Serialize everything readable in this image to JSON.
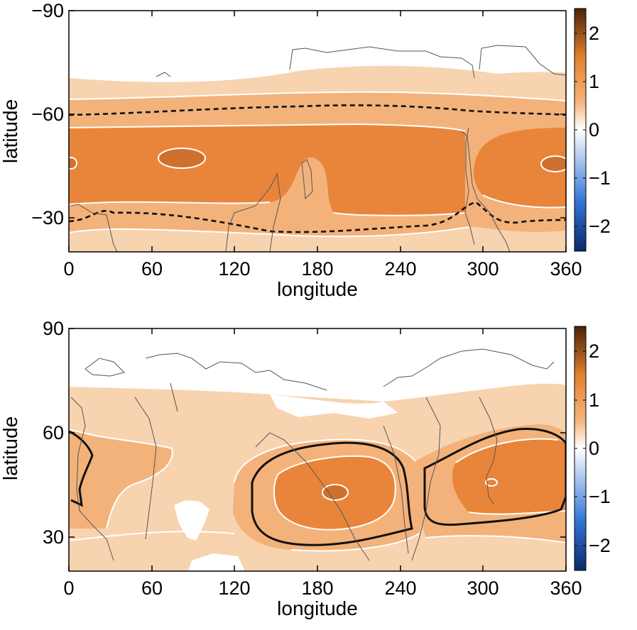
{
  "chart_data": [
    {
      "type": "heatmap",
      "xlabel": "longitude",
      "ylabel": "latitude",
      "xlim": [
        0,
        360
      ],
      "ylim": [
        -90,
        -20
      ],
      "x_ticks": [
        "0",
        "60",
        "120",
        "180",
        "240",
        "300",
        "360"
      ],
      "y_ticks": [
        "-90",
        "-60",
        "-30"
      ],
      "colorbar_ticks": [
        "2",
        "1",
        "0",
        "-1",
        "-2"
      ],
      "colorbar_range": [
        -2.5,
        2.5
      ],
      "colormap": [
        "#0b2a66",
        "#2f73d6",
        "#ffffff",
        "#f4b27a",
        "#e0822f",
        "#4a2208"
      ],
      "contour_levels": [
        0.5,
        1.0,
        1.5,
        2.0
      ],
      "level_colors": [
        "#f8d3b0",
        "#f3b27a",
        "#e9853a",
        "#cf702e"
      ]
    },
    {
      "type": "heatmap",
      "xlabel": "longitude",
      "ylabel": "latitude",
      "xlim": [
        0,
        360
      ],
      "ylim": [
        20,
        90
      ],
      "x_ticks": [
        "0",
        "60",
        "120",
        "180",
        "240",
        "300",
        "360"
      ],
      "y_ticks": [
        "90",
        "60",
        "30"
      ],
      "colorbar_ticks": [
        "2",
        "1",
        "0",
        "-1",
        "-2"
      ],
      "colorbar_range": [
        -2.5,
        2.5
      ],
      "colormap": [
        "#0b2a66",
        "#2f73d6",
        "#ffffff",
        "#f4b27a",
        "#e0822f",
        "#4a2208"
      ],
      "contour_levels": [
        0.5,
        1.0,
        1.5,
        2.0
      ],
      "level_colors": [
        "#f8d3b0",
        "#f3b27a",
        "#e9853a",
        "#cf702e"
      ]
    }
  ]
}
